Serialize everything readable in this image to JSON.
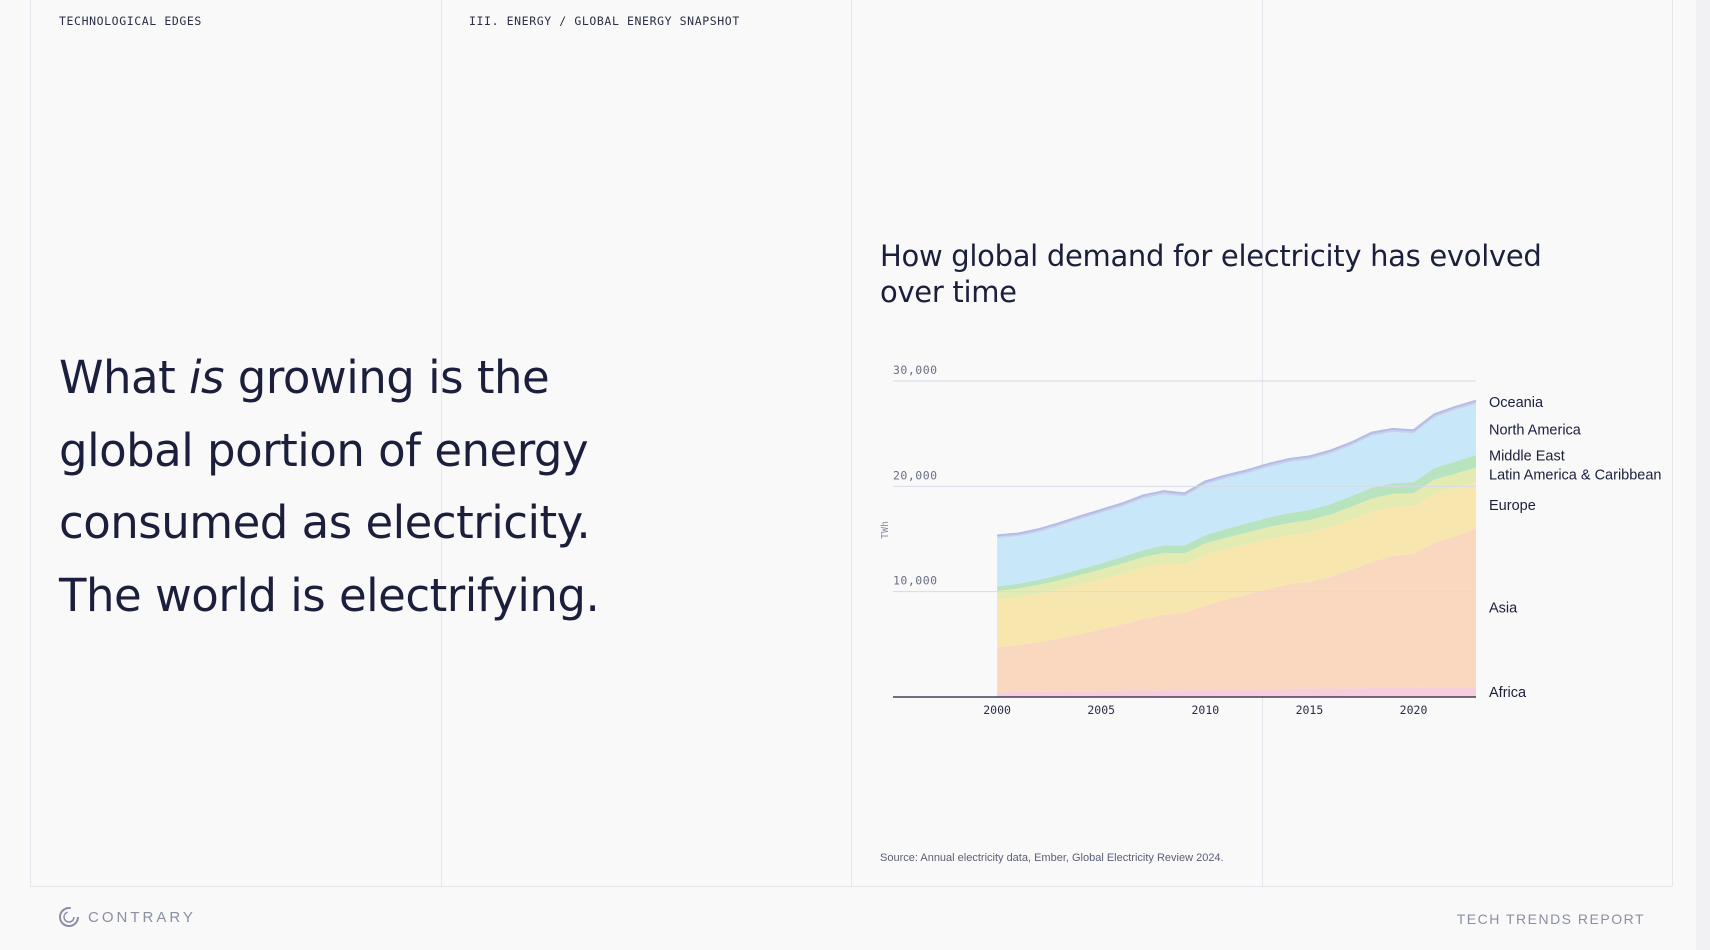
{
  "header": {
    "left_label": "TECHNOLOGICAL EDGES",
    "section_label": "III. ENERGY / GLOBAL ENERGY SNAPSHOT"
  },
  "headline": {
    "line1_a": "What ",
    "line1_em": "is",
    "line1_b": " growing is the",
    "line2": "global portion of energy",
    "line3": "consumed as electricity.",
    "line4": "The world is electrifying."
  },
  "source": "Source: Annual electricity data, Ember, Global Electricity Review 2024.",
  "footer": {
    "brand": "CONTRARY",
    "report": "TECH TRENDS REPORT"
  },
  "chart_data": {
    "type": "area",
    "stacked": true,
    "title": "How global demand for electricity has evolved over time",
    "ylabel": "TWh",
    "xlabel": "",
    "ylim": [
      0,
      30000
    ],
    "yticks": [
      10000,
      20000,
      30000
    ],
    "ytick_labels": [
      "10,000",
      "20,000",
      "30,000"
    ],
    "xticks": [
      2000,
      2005,
      2010,
      2015,
      2020
    ],
    "grid": true,
    "legend": "right, labels at series ends",
    "x": [
      2000,
      2001,
      2002,
      2003,
      2004,
      2005,
      2006,
      2007,
      2008,
      2009,
      2010,
      2011,
      2012,
      2013,
      2014,
      2015,
      2016,
      2017,
      2018,
      2019,
      2020,
      2021,
      2022,
      2023
    ],
    "series": [
      {
        "name": "Africa",
        "color": "#f7cfdc",
        "values": [
          450,
          470,
          490,
          510,
          540,
          570,
          600,
          620,
          650,
          650,
          690,
          710,
          730,
          750,
          770,
          790,
          810,
          830,
          850,
          870,
          860,
          900,
          920,
          940
        ]
      },
      {
        "name": "Asia",
        "color": "#f9d8bf",
        "values": [
          4300,
          4450,
          4700,
          5050,
          5450,
          5850,
          6300,
          6800,
          7150,
          7350,
          8000,
          8550,
          9000,
          9500,
          9950,
          10150,
          10600,
          11250,
          12000,
          12500,
          12750,
          13750,
          14350,
          15100
        ]
      },
      {
        "name": "Europe",
        "color": "#f7e7ae",
        "values": [
          4500,
          4550,
          4600,
          4650,
          4700,
          4750,
          4800,
          4850,
          4850,
          4600,
          4800,
          4750,
          4750,
          4700,
          4600,
          4650,
          4700,
          4750,
          4750,
          4650,
          4500,
          4700,
          4600,
          4400
        ]
      },
      {
        "name": "Latin America & Caribbean",
        "color": "#e3ebb3",
        "values": [
          800,
          820,
          840,
          870,
          900,
          930,
          960,
          1000,
          1030,
          1040,
          1080,
          1110,
          1140,
          1170,
          1190,
          1200,
          1210,
          1230,
          1250,
          1260,
          1230,
          1300,
          1330,
          1360
        ]
      },
      {
        "name": "Middle East",
        "color": "#b7e3bf",
        "values": [
          450,
          470,
          490,
          520,
          550,
          590,
          630,
          670,
          720,
          750,
          800,
          830,
          860,
          900,
          940,
          960,
          980,
          1000,
          1010,
          1030,
          1040,
          1100,
          1150,
          1190
        ]
      },
      {
        "name": "North America",
        "color": "#c8e7f8",
        "values": [
          4600,
          4500,
          4550,
          4650,
          4750,
          4800,
          4800,
          4900,
          4850,
          4650,
          4800,
          4800,
          4750,
          4800,
          4850,
          4800,
          4800,
          4800,
          4950,
          4850,
          4650,
          4800,
          4900,
          4850
        ]
      },
      {
        "name": "Oceania",
        "color": "#c9d0ec",
        "values": [
          250,
          255,
          260,
          265,
          270,
          275,
          280,
          285,
          290,
          290,
          290,
          290,
          290,
          290,
          290,
          290,
          290,
          290,
          290,
          290,
          290,
          290,
          290,
          290
        ]
      }
    ]
  }
}
